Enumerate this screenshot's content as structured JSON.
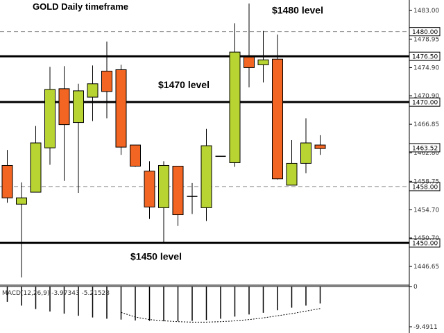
{
  "chart_data": {
    "type": "candlestick",
    "title": "GOLD Daily timeframe",
    "y_axis": {
      "ticks": [
        "1483.00",
        "1478.95",
        "1474.90",
        "1470.90",
        "1466.85",
        "1462.80",
        "1458.75",
        "1454.70",
        "1450.70",
        "1446.65"
      ],
      "range": [
        1444.0,
        1484.5
      ]
    },
    "levels": [
      {
        "price": 1476.5,
        "label": "1476.50",
        "style": "thick"
      },
      {
        "price": 1470.0,
        "label": "1470.00",
        "style": "thick"
      },
      {
        "price": 1450.0,
        "label": "1450.00",
        "style": "thick"
      },
      {
        "price": 1480.0,
        "label": "1480.00",
        "style": "dashed"
      },
      {
        "price": 1458.0,
        "label": "1458.00",
        "style": "dashed"
      }
    ],
    "level_notes": [
      {
        "text": "$1480 level",
        "price": 1482.6
      },
      {
        "text": "$1470 level",
        "price": 1472.0
      },
      {
        "text": "$1450 level",
        "price": 1447.6
      }
    ],
    "current_price": {
      "price": 1463.52,
      "label": "1463.52"
    },
    "bull_color": "#b8d432",
    "bear_color": "#f26522",
    "candles": [
      {
        "o": 1461.0,
        "h": 1463.2,
        "l": 1455.7,
        "c": 1456.4
      },
      {
        "o": 1455.5,
        "h": 1458.6,
        "l": 1445.1,
        "c": 1456.4
      },
      {
        "o": 1457.2,
        "h": 1466.6,
        "l": 1457.2,
        "c": 1464.2
      },
      {
        "o": 1463.5,
        "h": 1475.0,
        "l": 1461.1,
        "c": 1471.8
      },
      {
        "o": 1471.9,
        "h": 1475.1,
        "l": 1458.8,
        "c": 1466.8
      },
      {
        "o": 1467.1,
        "h": 1472.6,
        "l": 1457.1,
        "c": 1471.6
      },
      {
        "o": 1470.7,
        "h": 1475.2,
        "l": 1467.3,
        "c": 1472.6
      },
      {
        "o": 1474.4,
        "h": 1478.6,
        "l": 1467.7,
        "c": 1471.5
      },
      {
        "o": 1474.6,
        "h": 1475.3,
        "l": 1462.5,
        "c": 1463.6
      },
      {
        "o": 1463.9,
        "h": 1463.9,
        "l": 1460.8,
        "c": 1460.9
      },
      {
        "o": 1460.2,
        "h": 1461.6,
        "l": 1453.4,
        "c": 1455.1
      },
      {
        "o": 1455.0,
        "h": 1461.6,
        "l": 1450.1,
        "c": 1461.0
      },
      {
        "o": 1460.9,
        "h": 1460.9,
        "l": 1452.4,
        "c": 1454.0
      },
      {
        "o": 1456.6,
        "h": 1458.5,
        "l": 1454.1,
        "c": 1456.6
      },
      {
        "o": 1455.0,
        "h": 1466.2,
        "l": 1453.1,
        "c": 1463.8
      },
      {
        "o": 1462.3,
        "h": 1462.3,
        "l": 1462.3,
        "c": 1462.3
      },
      {
        "o": 1461.4,
        "h": 1481.2,
        "l": 1460.8,
        "c": 1477.1
      },
      {
        "o": 1476.4,
        "h": 1484.0,
        "l": 1472.1,
        "c": 1474.9
      },
      {
        "o": 1475.3,
        "h": 1480.1,
        "l": 1472.8,
        "c": 1476.0
      },
      {
        "o": 1476.1,
        "h": 1479.6,
        "l": 1459.0,
        "c": 1459.1
      },
      {
        "o": 1458.2,
        "h": 1464.6,
        "l": 1458.2,
        "c": 1461.3
      },
      {
        "o": 1461.3,
        "h": 1467.7,
        "l": 1459.9,
        "c": 1464.2
      },
      {
        "o": 1463.9,
        "h": 1465.3,
        "l": 1462.5,
        "c": 1463.4
      }
    ],
    "macd": {
      "label": "MACD(12,26,9) -3.97343 -5.21528",
      "ticks": [
        "0",
        "-9.4911"
      ],
      "range": [
        -9.4911,
        0
      ],
      "bars": [
        -3.6,
        -4.5,
        -5.3,
        -5.9,
        -6.4,
        -6.9,
        -7.3,
        -7.6,
        -7.8,
        -8.0,
        -8.1,
        -8.2,
        -8.2,
        -8.1,
        -7.9,
        -7.6,
        -7.1,
        -6.6,
        -6.2,
        -5.6,
        -5.0,
        -4.5,
        -4.0
      ],
      "signal": [
        -6.1,
        -7.2,
        -7.8,
        -8.1,
        -8.3,
        -8.4,
        -8.4,
        -8.3,
        -8.1,
        -7.8,
        -7.4,
        -6.9,
        -6.4,
        -5.8,
        -5.2
      ]
    }
  }
}
